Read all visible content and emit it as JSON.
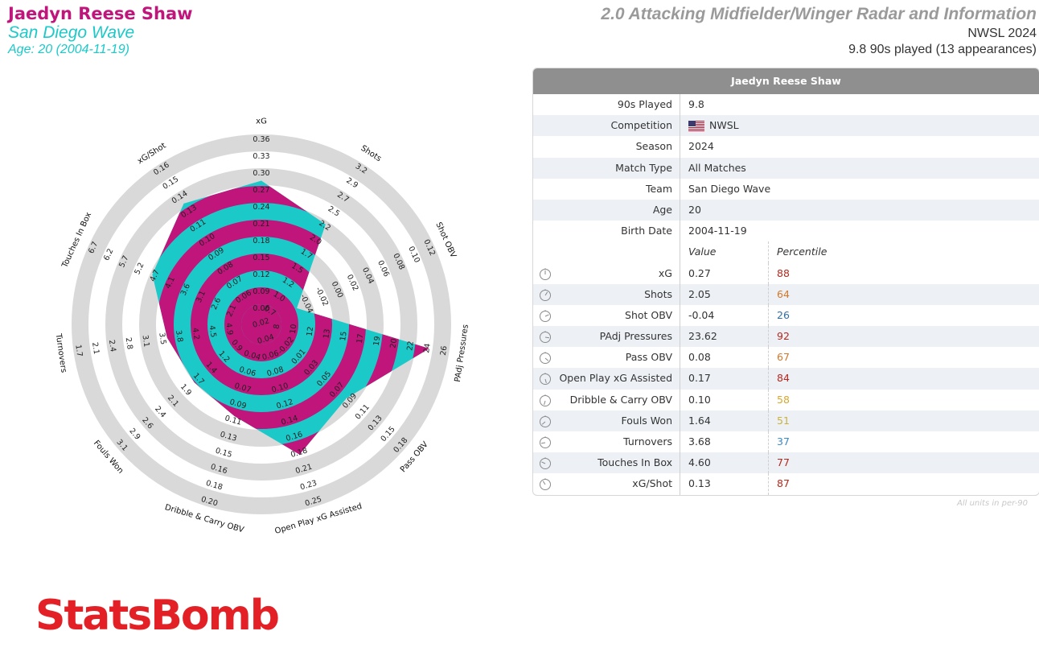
{
  "header": {
    "player_name": "Jaedyn Reese Shaw",
    "team": "San Diego Wave",
    "age_line": "Age: 20 (2004-11-19)",
    "title": "2.0 Attacking Midfielder/Winger Radar and Information",
    "competition_season": "NWSL 2024",
    "minutes_line": "9.8 90s played (13 appearances)"
  },
  "colors": {
    "magenta": "#c0157a",
    "cyan": "#1cc9c9",
    "ring_grey": "#d9d9d9",
    "header_grey": "#8f8f8f"
  },
  "chart_data": {
    "type": "radar",
    "title": "2.0 Attacking Midfielder/Winger Radar and Information",
    "player": "Jaedyn Reese Shaw",
    "axes": [
      {
        "label": "xG",
        "ticks": [
          "0.06",
          "0.09",
          "0.12",
          "0.15",
          "0.18",
          "0.21",
          "0.24",
          "0.27",
          "0.30",
          "0.33",
          "0.36"
        ],
        "value": 0.27,
        "range": [
          0.03,
          0.36
        ]
      },
      {
        "label": "Shots",
        "ticks": [
          "0.7",
          "1.0",
          "1.2",
          "1.5",
          "1.7",
          "2.0",
          "2.2",
          "2.5",
          "2.7",
          "2.9",
          "3.2"
        ],
        "value": 2.05,
        "range": [
          0.45,
          3.2
        ]
      },
      {
        "label": "Shot OBV",
        "ticks": [
          "-0.04",
          "-0.02",
          "0.00",
          "0.02",
          "0.04",
          "0.06",
          "0.08",
          "0.10",
          "0.12"
        ],
        "value": -0.04,
        "range": [
          -0.06,
          0.12
        ]
      },
      {
        "label": "PAdj Pressures",
        "ticks": [
          "8",
          "10",
          "12",
          "13",
          "15",
          "17",
          "19",
          "20",
          "22",
          "24",
          "26"
        ],
        "value": 23.62,
        "range": [
          6,
          26
        ]
      },
      {
        "label": "Pass OBV",
        "ticks": [
          "-0.02",
          "0.01",
          "0.03",
          "0.05",
          "0.07",
          "0.09",
          "0.11",
          "0.13",
          "0.15",
          "0.18"
        ],
        "value": 0.08,
        "range": [
          -0.04,
          0.18
        ]
      },
      {
        "label": "Open Play xG Assisted",
        "ticks": [
          "0.02",
          "0.04",
          "0.06",
          "0.08",
          "0.10",
          "0.12",
          "0.14",
          "0.16",
          "0.18",
          "0.21",
          "0.23",
          "0.25"
        ],
        "value": 0.17,
        "range": [
          0.0,
          0.25
        ]
      },
      {
        "label": "Dribble & Carry OBV",
        "ticks": [
          "0.04",
          "0.06",
          "0.07",
          "0.09",
          "0.11",
          "0.13",
          "0.15",
          "0.16",
          "0.18",
          "0.20"
        ],
        "value": 0.1,
        "range": [
          0.02,
          0.2
        ]
      },
      {
        "label": "Fouls Won",
        "ticks": [
          "0.9",
          "1.2",
          "1.4",
          "1.7",
          "1.9",
          "2.1",
          "2.4",
          "2.6",
          "2.9",
          "3.1"
        ],
        "value": 1.64,
        "range": [
          0.65,
          3.1
        ]
      },
      {
        "label": "Turnovers",
        "ticks": [
          "4.9",
          "4.5",
          "4.2",
          "3.8",
          "3.5",
          "3.1",
          "2.8",
          "2.4",
          "2.1",
          "1.7"
        ],
        "value": 3.68,
        "range": [
          5.25,
          1.7
        ]
      },
      {
        "label": "Touches In Box",
        "ticks": [
          "2.1",
          "2.6",
          "3.1",
          "3.6",
          "4.1",
          "4.7",
          "5.2",
          "5.7",
          "6.2",
          "6.7"
        ],
        "value": 4.6,
        "range": [
          1.6,
          6.7
        ]
      },
      {
        "label": "xG/Shot",
        "ticks": [
          "0.06",
          "0.07",
          "0.08",
          "0.09",
          "0.10",
          "0.11",
          "0.13",
          "0.14",
          "0.15",
          "0.16"
        ],
        "value": 0.13,
        "range": [
          0.05,
          0.16
        ]
      }
    ]
  },
  "table": {
    "header": "Jaedyn Reese Shaw",
    "info_rows": [
      {
        "label": "90s Played",
        "value": "9.8"
      },
      {
        "label": "Competition",
        "value": "NWSL",
        "flag": "us-flag-icon"
      },
      {
        "label": "Season",
        "value": "2024"
      },
      {
        "label": "Match Type",
        "value": "All Matches"
      },
      {
        "label": "Team",
        "value": "San Diego Wave"
      },
      {
        "label": "Age",
        "value": "20"
      },
      {
        "label": "Birth Date",
        "value": "2004-11-19"
      }
    ],
    "col_value": "Value",
    "col_percentile": "Percentile",
    "metric_rows": [
      {
        "label": "xG",
        "value": "0.27",
        "percentile": "88",
        "pct_color": "#b5281c",
        "icon": "gauge-icon"
      },
      {
        "label": "Shots",
        "value": "2.05",
        "percentile": "64",
        "pct_color": "#d2782a",
        "icon": "gauge-icon"
      },
      {
        "label": "Shot OBV",
        "value": "-0.04",
        "percentile": "26",
        "pct_color": "#2f6fa8",
        "icon": "gauge-icon"
      },
      {
        "label": "PAdj Pressures",
        "value": "23.62",
        "percentile": "92",
        "pct_color": "#b5281c",
        "icon": "gauge-icon"
      },
      {
        "label": "Pass OBV",
        "value": "0.08",
        "percentile": "67",
        "pct_color": "#d2782a",
        "icon": "gauge-icon"
      },
      {
        "label": "Open Play xG Assisted",
        "value": "0.17",
        "percentile": "84",
        "pct_color": "#b5281c",
        "icon": "gauge-icon"
      },
      {
        "label": "Dribble & Carry OBV",
        "value": "0.10",
        "percentile": "58",
        "pct_color": "#d9a72c",
        "icon": "gauge-icon"
      },
      {
        "label": "Fouls Won",
        "value": "1.64",
        "percentile": "51",
        "pct_color": "#c9b23a",
        "icon": "gauge-icon"
      },
      {
        "label": "Turnovers",
        "value": "3.68",
        "percentile": "37",
        "pct_color": "#3a89c9",
        "icon": "gauge-icon"
      },
      {
        "label": "Touches In Box",
        "value": "4.60",
        "percentile": "77",
        "pct_color": "#b5281c",
        "icon": "gauge-icon"
      },
      {
        "label": "xG/Shot",
        "value": "0.13",
        "percentile": "87",
        "pct_color": "#b5281c",
        "icon": "gauge-icon"
      }
    ],
    "note": "All units in per-90"
  },
  "brand": {
    "logo_text": "StatsBomb"
  }
}
